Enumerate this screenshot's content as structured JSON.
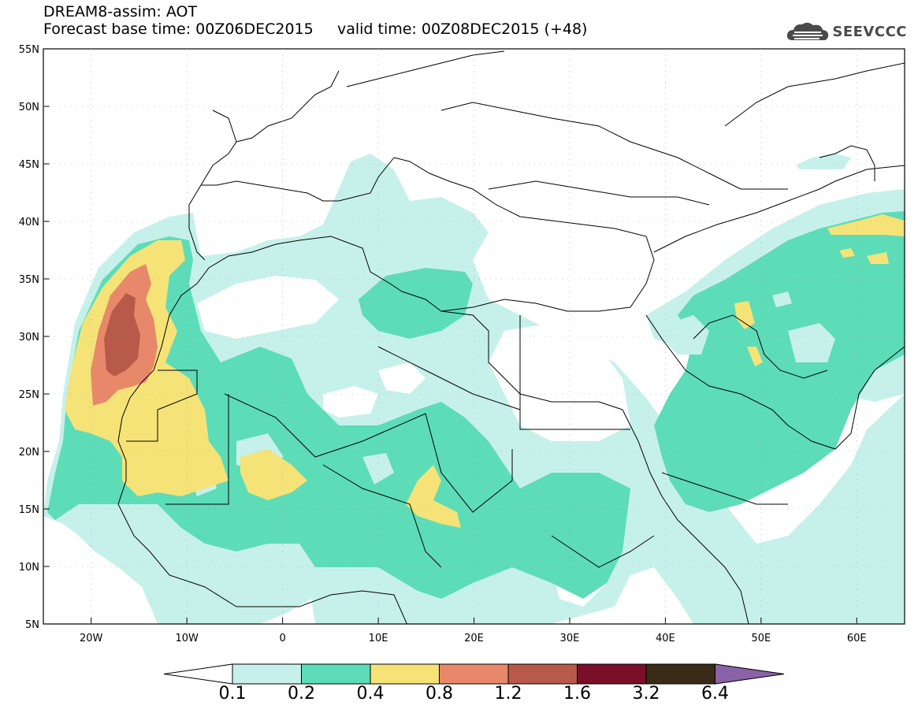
{
  "header": {
    "title": "DREAM8-assim: AOT",
    "subtitle": "Forecast base time: 00Z06DEC2015     valid time: 00Z08DEC2015 (+48)",
    "brand": "SEEVCCC"
  },
  "map": {
    "lon_range": [
      -25,
      65
    ],
    "lat_range": [
      5,
      55
    ],
    "lat_labels": [
      "55N",
      "50N",
      "45N",
      "40N",
      "35N",
      "30N",
      "25N",
      "20N",
      "15N",
      "10N",
      "5N"
    ],
    "lon_labels": [
      "20W",
      "10W",
      "0",
      "10E",
      "20E",
      "30E",
      "40E",
      "50E",
      "60E"
    ]
  },
  "colorbar": {
    "thresholds": [
      "0.1",
      "0.2",
      "0.4",
      "0.8",
      "1.2",
      "1.6",
      "3.2",
      "6.4"
    ],
    "colors": [
      "#c6f1ea",
      "#5ddcb8",
      "#f5e378",
      "#e8886a",
      "#b85a4a",
      "#7a0f2a",
      "#3a2a18",
      "#8a62a8"
    ],
    "under_color": "#ffffff"
  }
}
